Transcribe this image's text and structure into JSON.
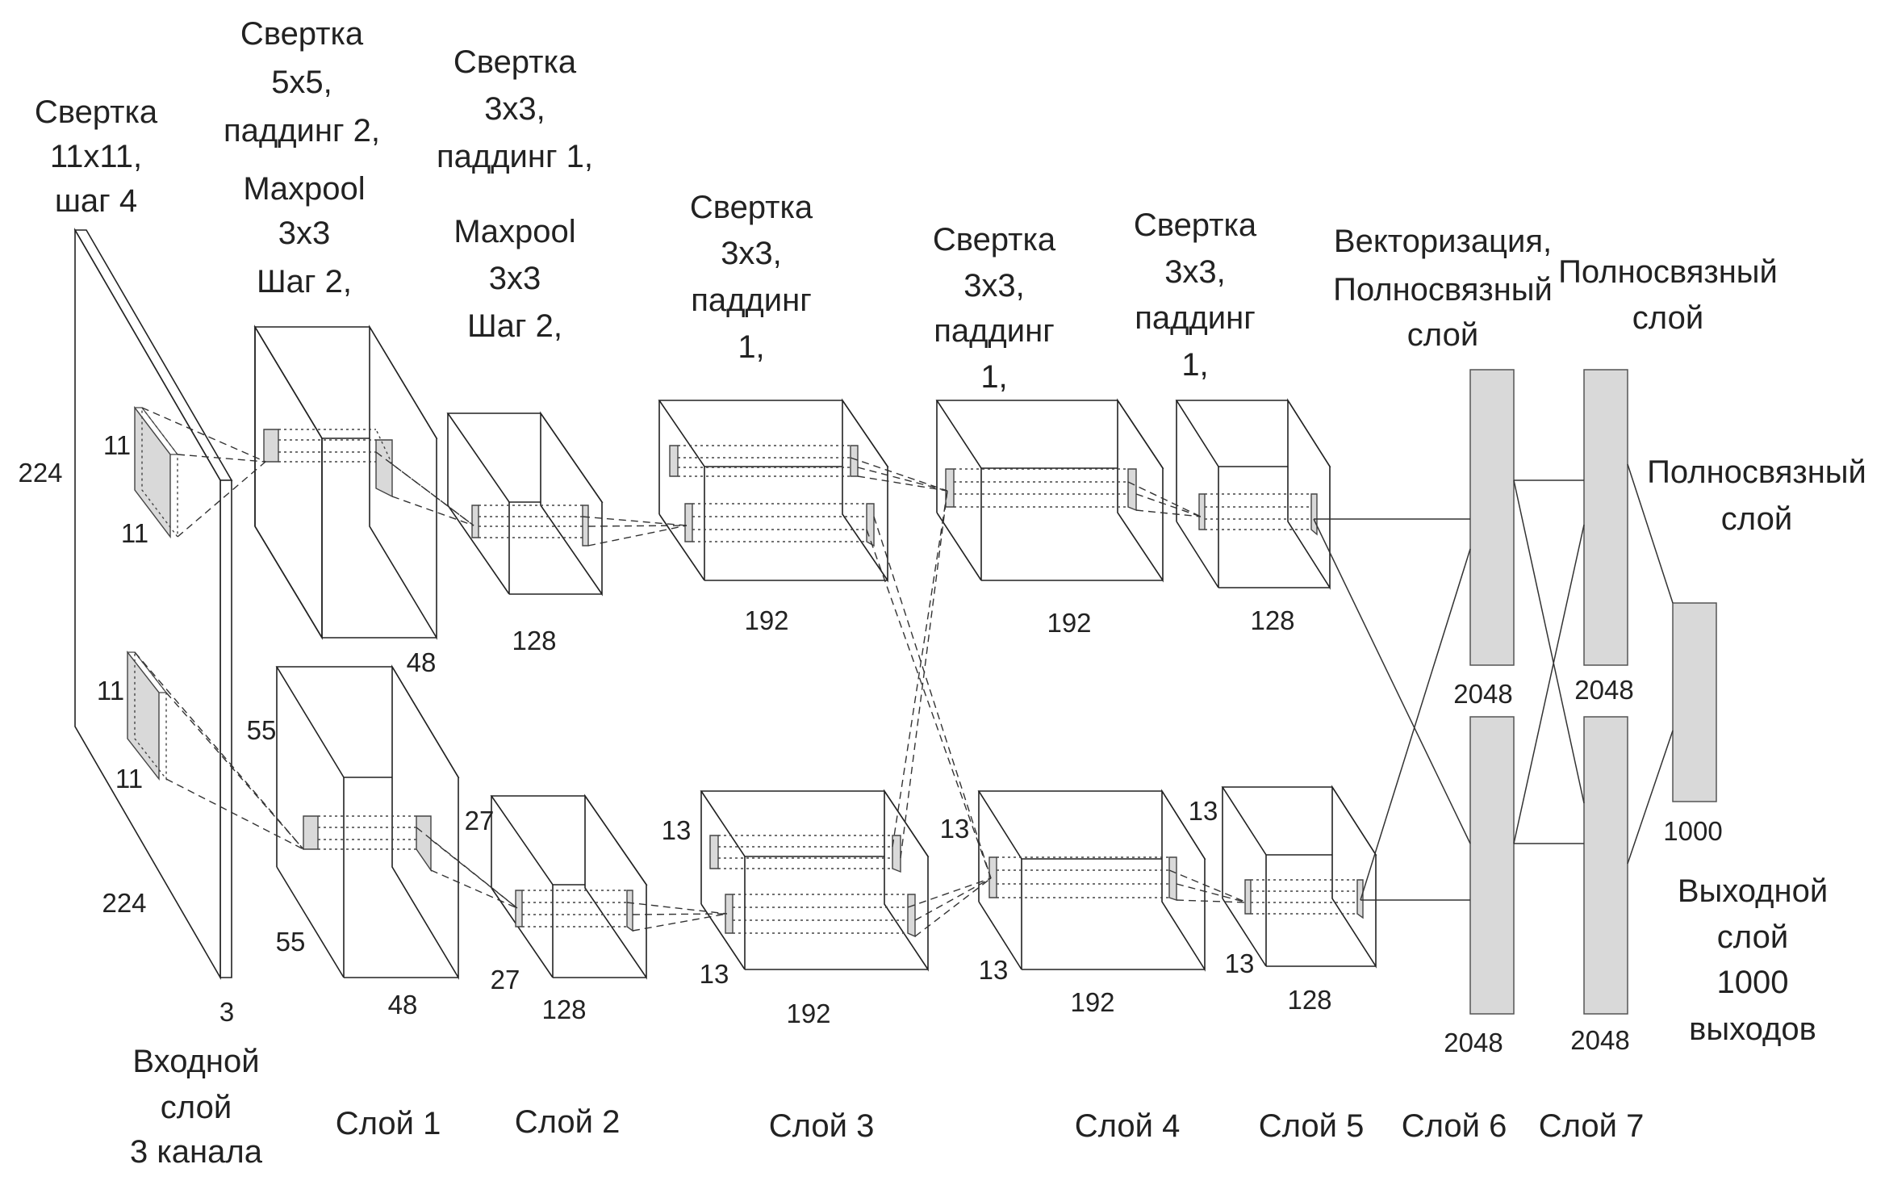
{
  "captions": {
    "conv1": [
      "Свертка",
      "11x11,",
      "шаг 4"
    ],
    "conv2": [
      "Свертка",
      "5x5,",
      "паддинг 2,"
    ],
    "pool2": [
      "Maxpool",
      "3x3",
      "Шаг 2,"
    ],
    "conv3": [
      "Свертка",
      "3x3,",
      "паддинг 1,"
    ],
    "pool3": [
      "Maxpool",
      "3x3",
      "Шаг 2,"
    ],
    "conv4": [
      "Свертка",
      "3x3,",
      "паддинг",
      "1,"
    ],
    "conv5": [
      "Свертка",
      "3x3,",
      "паддинг",
      "1,"
    ],
    "conv6": [
      "Свертка",
      "3x3,",
      "паддинг",
      "1,"
    ],
    "fc6": [
      "Векторизация,",
      "Полносвязный",
      "слой"
    ],
    "fc7": [
      "Полносвязный",
      "слой"
    ],
    "fc8": [
      "Полносвязный",
      "слой"
    ],
    "output": [
      "Выходной",
      "слой",
      "1000",
      "выходов"
    ],
    "input": [
      "Входной",
      "слой",
      "3 канала"
    ]
  },
  "layer_labels": [
    "Слой 1",
    "Слой 2",
    "Слой 3",
    "Слой 4",
    "Слой 5",
    "Слой 6",
    "Слой 7"
  ],
  "dims": {
    "input_h": "224",
    "input_w": "224",
    "input_c": "3",
    "kernel_top_h": "11",
    "kernel_top_w": "11",
    "kernel_bot_h": "11",
    "kernel_bot_w": "11",
    "l1_top_c": "48",
    "l1_bot_h": "55",
    "l1_bot_w": "55",
    "l1_bot_c": "48",
    "l2_top_c": "128",
    "l2_bot_h": "27",
    "l2_bot_w": "27",
    "l2_bot_c": "128",
    "l3_top_c": "192",
    "l3_bot_h": "13",
    "l3_bot_w": "13",
    "l3_bot_c": "192",
    "l4_top_c": "192",
    "l4_bot_h": "13",
    "l4_bot_w": "13",
    "l4_bot_c": "192",
    "l5_top_c": "128",
    "l5_bot_h": "13",
    "l5_bot_w": "13",
    "l5_bot_c": "128",
    "fc6_top": "2048",
    "fc6_bot": "2048",
    "fc7_top": "2048",
    "fc7_bot": "2048",
    "out": "1000"
  }
}
